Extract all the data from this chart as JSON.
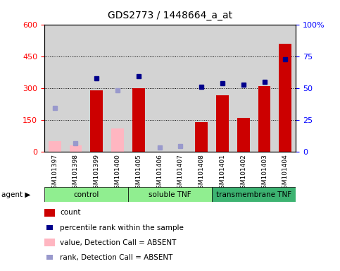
{
  "title": "GDS2773 / 1448664_a_at",
  "samples": [
    "GSM101397",
    "GSM101398",
    "GSM101399",
    "GSM101400",
    "GSM101405",
    "GSM101406",
    "GSM101407",
    "GSM101408",
    "GSM101401",
    "GSM101402",
    "GSM101403",
    "GSM101404"
  ],
  "count_present": [
    null,
    null,
    290,
    null,
    300,
    null,
    null,
    140,
    265,
    160,
    310,
    510
  ],
  "count_absent": [
    50,
    30,
    null,
    110,
    null,
    null,
    null,
    null,
    null,
    null,
    null,
    null
  ],
  "rank_present": [
    null,
    null,
    57.5,
    null,
    59.2,
    null,
    null,
    51.0,
    53.5,
    52.5,
    55.0,
    72.5
  ],
  "rank_absent": [
    34.2,
    6.7,
    null,
    48.3,
    null,
    3.3,
    4.2,
    null,
    null,
    null,
    null,
    null
  ],
  "groups": [
    {
      "label": "control",
      "start": 0,
      "end": 4,
      "color": "#90ee90"
    },
    {
      "label": "soluble TNF",
      "start": 4,
      "end": 8,
      "color": "#90ee90"
    },
    {
      "label": "transmembrane TNF",
      "start": 8,
      "end": 12,
      "color": "#3cb371"
    }
  ],
  "ylim_left": [
    0,
    600
  ],
  "ylim_right": [
    0,
    100
  ],
  "left_ticks": [
    0,
    150,
    300,
    450,
    600
  ],
  "right_ticks": [
    0,
    25,
    50,
    75,
    100
  ],
  "right_tick_labels": [
    "0",
    "25",
    "50",
    "75",
    "100%"
  ],
  "bar_color_present": "#cc0000",
  "bar_color_absent": "#ffb6c1",
  "dot_color_present": "#00008b",
  "dot_color_absent": "#9999cc",
  "background_color": "#d3d3d3"
}
